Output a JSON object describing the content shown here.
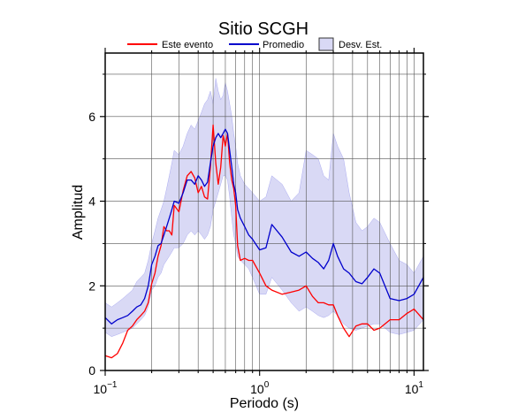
{
  "chart_data": {
    "type": "line",
    "title": "Sitio SCGH",
    "xlabel": "Periodo (s)",
    "ylabel": "Amplitud",
    "xscale": "log",
    "xlim": [
      0.1,
      11.5
    ],
    "ylim": [
      0,
      7.5
    ],
    "xticks": [
      {
        "value": 0.1,
        "base": "10",
        "exp": "−1"
      },
      {
        "value": 1,
        "base": "10",
        "exp": "0"
      },
      {
        "value": 10,
        "base": "10",
        "exp": "1"
      }
    ],
    "yticks": [
      0,
      2,
      4,
      6
    ],
    "grid": true,
    "legend_position": "top",
    "legend": [
      "Este evento",
      "Promedio",
      "Desv. Est."
    ],
    "colors": {
      "event": "#ff0000",
      "mean": "#0000cc",
      "band": "#d9d9f5",
      "band_edge": "#9999ee"
    },
    "series": [
      {
        "name": "Este evento",
        "x": [
          0.1,
          0.11,
          0.12,
          0.13,
          0.14,
          0.15,
          0.16,
          0.17,
          0.18,
          0.19,
          0.2,
          0.21,
          0.22,
          0.23,
          0.24,
          0.25,
          0.26,
          0.27,
          0.28,
          0.3,
          0.32,
          0.34,
          0.36,
          0.38,
          0.4,
          0.42,
          0.44,
          0.46,
          0.48,
          0.5,
          0.52,
          0.54,
          0.56,
          0.58,
          0.6,
          0.62,
          0.64,
          0.66,
          0.68,
          0.7,
          0.72,
          0.75,
          0.8,
          0.85,
          0.9,
          1.0,
          1.1,
          1.2,
          1.4,
          1.6,
          1.8,
          2.0,
          2.2,
          2.4,
          2.6,
          2.8,
          3.0,
          3.2,
          3.5,
          3.8,
          4.2,
          4.6,
          5.0,
          5.5,
          6.0,
          7.0,
          8.0,
          9.0,
          10.0,
          11.5
        ],
        "values": [
          0.35,
          0.3,
          0.4,
          0.65,
          0.95,
          1.05,
          1.2,
          1.3,
          1.4,
          1.6,
          2.05,
          2.3,
          2.7,
          2.95,
          3.4,
          3.3,
          3.3,
          3.2,
          3.9,
          3.75,
          4.25,
          4.6,
          4.7,
          4.55,
          4.2,
          4.35,
          4.1,
          4.05,
          4.8,
          5.8,
          4.9,
          4.4,
          4.8,
          5.55,
          5.3,
          5.6,
          4.9,
          4.5,
          4.3,
          3.9,
          2.95,
          2.6,
          2.65,
          2.6,
          2.6,
          2.3,
          2.0,
          1.9,
          1.8,
          1.85,
          1.9,
          2.0,
          1.75,
          1.6,
          1.6,
          1.55,
          1.55,
          1.3,
          1.0,
          0.8,
          1.05,
          1.1,
          1.1,
          0.95,
          1.0,
          1.2,
          1.2,
          1.35,
          1.45,
          1.2
        ]
      },
      {
        "name": "Promedio",
        "x": [
          0.1,
          0.11,
          0.12,
          0.13,
          0.14,
          0.15,
          0.16,
          0.17,
          0.18,
          0.19,
          0.2,
          0.21,
          0.22,
          0.23,
          0.24,
          0.25,
          0.26,
          0.27,
          0.28,
          0.3,
          0.32,
          0.34,
          0.36,
          0.38,
          0.4,
          0.42,
          0.44,
          0.46,
          0.48,
          0.5,
          0.52,
          0.54,
          0.56,
          0.58,
          0.6,
          0.62,
          0.64,
          0.66,
          0.68,
          0.7,
          0.72,
          0.75,
          0.8,
          0.85,
          0.9,
          1.0,
          1.1,
          1.2,
          1.4,
          1.6,
          1.8,
          2.0,
          2.2,
          2.4,
          2.6,
          2.8,
          3.0,
          3.2,
          3.5,
          3.8,
          4.2,
          4.6,
          5.0,
          5.5,
          6.0,
          7.0,
          8.0,
          9.0,
          10.0,
          11.5
        ],
        "values": [
          1.25,
          1.1,
          1.2,
          1.25,
          1.3,
          1.4,
          1.5,
          1.55,
          1.7,
          2.0,
          2.5,
          2.7,
          2.95,
          3.0,
          3.2,
          3.4,
          3.6,
          3.8,
          4.0,
          3.95,
          4.2,
          4.5,
          4.5,
          4.4,
          4.6,
          4.5,
          4.35,
          4.45,
          4.9,
          5.3,
          5.5,
          5.6,
          5.5,
          5.6,
          5.7,
          5.6,
          5.2,
          4.8,
          4.4,
          4.2,
          3.8,
          3.6,
          3.4,
          3.2,
          3.1,
          2.85,
          2.9,
          3.45,
          3.15,
          2.8,
          2.7,
          2.8,
          2.65,
          2.55,
          2.4,
          2.6,
          3.0,
          2.7,
          2.4,
          2.3,
          2.1,
          2.05,
          2.2,
          2.4,
          2.3,
          1.7,
          1.65,
          1.7,
          1.8,
          2.2
        ]
      }
    ],
    "band": {
      "name": "Desv. Est.",
      "x": [
        0.1,
        0.11,
        0.12,
        0.13,
        0.14,
        0.15,
        0.16,
        0.17,
        0.18,
        0.19,
        0.2,
        0.21,
        0.22,
        0.23,
        0.24,
        0.25,
        0.26,
        0.27,
        0.28,
        0.3,
        0.32,
        0.34,
        0.36,
        0.38,
        0.4,
        0.42,
        0.44,
        0.46,
        0.48,
        0.5,
        0.52,
        0.54,
        0.56,
        0.58,
        0.6,
        0.62,
        0.64,
        0.66,
        0.68,
        0.7,
        0.72,
        0.75,
        0.8,
        0.85,
        0.9,
        1.0,
        1.1,
        1.2,
        1.4,
        1.6,
        1.8,
        2.0,
        2.2,
        2.4,
        2.6,
        2.8,
        3.0,
        3.2,
        3.5,
        3.8,
        4.2,
        4.6,
        5.0,
        5.5,
        6.0,
        7.0,
        8.0,
        9.0,
        10.0,
        11.5
      ],
      "upper": [
        1.6,
        1.5,
        1.6,
        1.7,
        1.8,
        1.9,
        2.1,
        2.2,
        2.3,
        2.6,
        3.0,
        3.3,
        3.6,
        3.8,
        4.0,
        4.3,
        4.6,
        4.9,
        5.2,
        5.1,
        5.3,
        5.6,
        5.8,
        5.7,
        5.9,
        6.1,
        6.3,
        6.4,
        6.6,
        6.3,
        6.9,
        6.6,
        6.4,
        6.5,
        6.8,
        6.6,
        6.3,
        6.0,
        5.6,
        5.3,
        4.9,
        4.6,
        4.4,
        4.3,
        4.2,
        4.0,
        4.1,
        4.6,
        4.4,
        4.0,
        4.2,
        5.2,
        5.1,
        5.0,
        4.6,
        4.5,
        5.6,
        5.3,
        5.0,
        4.2,
        3.5,
        3.3,
        3.4,
        3.6,
        3.5,
        3.0,
        2.6,
        2.5,
        2.3,
        2.7
      ],
      "lower": [
        0.9,
        0.8,
        0.85,
        0.9,
        0.95,
        1.0,
        1.1,
        1.2,
        1.3,
        1.5,
        1.9,
        2.0,
        2.2,
        2.3,
        2.5,
        2.6,
        2.7,
        2.8,
        2.9,
        2.9,
        3.0,
        3.2,
        3.3,
        3.2,
        3.3,
        3.2,
        3.1,
        3.2,
        3.4,
        3.8,
        4.0,
        4.2,
        4.4,
        4.6,
        4.6,
        4.5,
        4.1,
        3.6,
        3.2,
        3.0,
        2.7,
        2.6,
        2.5,
        2.4,
        2.2,
        1.8,
        1.8,
        2.2,
        1.9,
        1.6,
        1.4,
        1.5,
        1.4,
        1.3,
        1.25,
        1.3,
        1.4,
        1.3,
        1.1,
        1.0,
        0.95,
        1.0,
        1.05,
        1.1,
        1.1,
        0.9,
        0.85,
        0.9,
        0.95,
        1.2
      ]
    }
  }
}
